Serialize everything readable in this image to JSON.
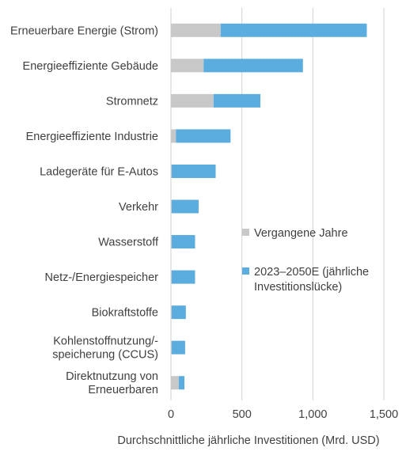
{
  "chart_data": {
    "type": "bar",
    "orientation": "horizontal",
    "stacked": true,
    "title": "",
    "xlabel": "Durchschnittliche jährliche Investitionen (Mrd. USD)",
    "ylabel": "",
    "xlim": [
      0,
      1500
    ],
    "xticks": [
      0,
      500,
      1000,
      1500
    ],
    "xtick_labels": [
      "0",
      "500",
      "1,000",
      "1,500"
    ],
    "grid": "vertical",
    "legend_position": "right",
    "categories": [
      [
        "Erneuerbare Energie (Strom)"
      ],
      [
        "Energieeffiziente Gebäude"
      ],
      [
        "Stromnetz"
      ],
      [
        "Energieeffiziente Industrie"
      ],
      [
        "Ladegeräte für E-Autos"
      ],
      [
        "Verkehr"
      ],
      [
        "Wasserstoff"
      ],
      [
        "Netz-/Energiespeicher"
      ],
      [
        "Biokraftstoffe"
      ],
      [
        "Kohlenstoffnutzung/-",
        "speicherung (CCUS)"
      ],
      [
        "Direktnutzung von",
        "Erneuerbaren"
      ]
    ],
    "series": [
      {
        "name": "Vergangene Jahre",
        "legend_lines": [
          "Vergangene Jahre"
        ],
        "color": "#c8c8c8",
        "values": [
          350,
          230,
          300,
          35,
          5,
          5,
          5,
          5,
          5,
          5,
          55
        ]
      },
      {
        "name": "2023–2050E (jährliche Investitionslücke)",
        "legend_lines": [
          "2023–2050E (jährliche",
          "Investitionslücke)"
        ],
        "color": "#5baddf",
        "values": [
          1030,
          700,
          330,
          385,
          310,
          190,
          165,
          165,
          100,
          95,
          40
        ]
      }
    ]
  }
}
